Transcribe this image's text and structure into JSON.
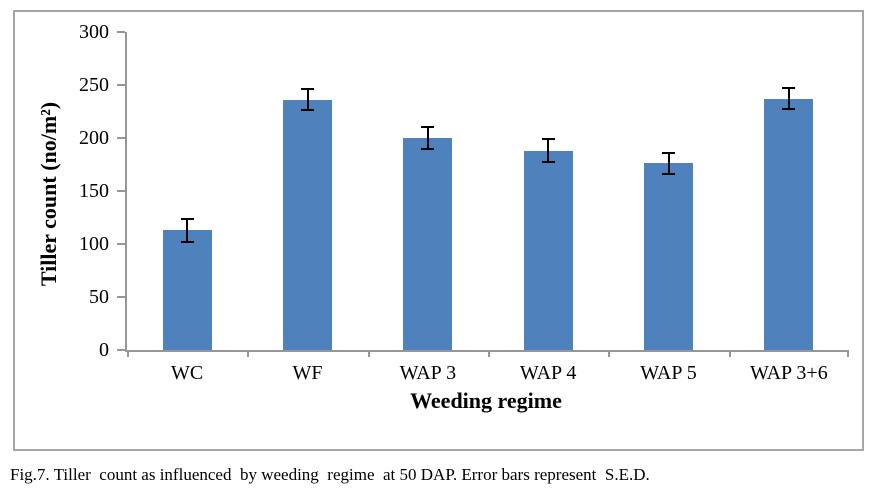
{
  "figure": {
    "caption": "Fig.7. Tiller  count as influenced  by weeding  regime  at 50 DAP. Error bars represent  S.E.D."
  },
  "chart_data": {
    "type": "bar",
    "title": "",
    "categories": [
      "WC",
      "WF",
      "WAP 3",
      "WAP 4",
      "WAP 5",
      "WAP 3+6"
    ],
    "values": [
      113,
      236,
      200,
      188,
      176,
      237
    ],
    "errors": [
      11,
      10,
      10,
      11,
      10,
      10
    ],
    "error_bars_represent": "S.E.D.",
    "xlabel": "Weeding regime",
    "ylabel": "Tiller count (no/m²)",
    "ylim": [
      0,
      300
    ],
    "yticks": [
      0,
      50,
      100,
      150,
      200,
      250,
      300
    ],
    "grid": false,
    "legend": false,
    "bar_color": "#4F81BD",
    "error_color": "#000000",
    "axis_color": "#969696"
  }
}
